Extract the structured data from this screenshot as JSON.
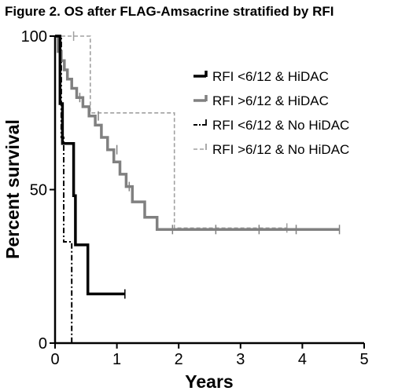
{
  "chart_data": {
    "type": "line",
    "subtype": "kaplan-meier",
    "title": "Figure 2. OS after FLAG-Amsacrine stratified by RFI",
    "xlabel": "Years",
    "ylabel": "Percent survival",
    "xlim": [
      0,
      5
    ],
    "ylim": [
      0,
      100
    ],
    "xticks": [
      "0",
      "1",
      "2",
      "3",
      "4",
      "5"
    ],
    "yticks": [
      "0",
      "50",
      "100"
    ],
    "grid": false,
    "legend_position": "top-right",
    "series": [
      {
        "name": "RFI <6/12 & HiDAC",
        "color": "#000000",
        "style": "solid-thick",
        "x": [
          0,
          0.08,
          0.08,
          0.12,
          0.12,
          0.16,
          0.16,
          0.3,
          0.3,
          0.33,
          0.33,
          0.53,
          0.53,
          1.13
        ],
        "y": [
          100,
          100,
          78,
          78,
          65,
          65,
          65,
          65,
          48,
          48,
          32,
          32,
          16,
          16
        ],
        "censored": [
          [
            1.13,
            16
          ]
        ]
      },
      {
        "name": "RFI >6/12 & HiDAC",
        "color": "#808080",
        "style": "solid-thick",
        "x": [
          0,
          0.05,
          0.05,
          0.1,
          0.1,
          0.15,
          0.15,
          0.2,
          0.2,
          0.27,
          0.27,
          0.35,
          0.35,
          0.45,
          0.45,
          0.55,
          0.55,
          0.65,
          0.65,
          0.75,
          0.75,
          0.85,
          0.85,
          0.95,
          0.95,
          1.05,
          1.05,
          1.15,
          1.15,
          1.25,
          1.25,
          1.45,
          1.45,
          1.65,
          1.65,
          4.6
        ],
        "y": [
          100,
          100,
          95,
          95,
          92,
          92,
          89,
          89,
          86,
          86,
          83,
          83,
          80,
          80,
          77,
          77,
          74,
          74,
          71,
          71,
          67,
          67,
          63,
          63,
          59,
          59,
          55,
          55,
          51,
          51,
          46,
          46,
          41,
          41,
          37,
          37
        ],
        "censored": [
          [
            0.4,
            80
          ],
          [
            0.7,
            74
          ],
          [
            1.0,
            63
          ],
          [
            1.2,
            51
          ],
          [
            1.9,
            37
          ],
          [
            2.6,
            37
          ],
          [
            3.3,
            37
          ],
          [
            3.9,
            37
          ],
          [
            4.6,
            37
          ]
        ]
      },
      {
        "name": "RFI <6/12 & No HiDAC",
        "color": "#000000",
        "style": "dash-dot",
        "x": [
          0,
          0.1,
          0.1,
          0.14,
          0.14,
          0.27,
          0.27
        ],
        "y": [
          100,
          100,
          67,
          67,
          33,
          33,
          0
        ],
        "censored": []
      },
      {
        "name": "RFI >6/12 & No HiDAC",
        "color": "#a0a0a0",
        "style": "dashed",
        "x": [
          0,
          0.57,
          0.57,
          1.93,
          1.93,
          3.75
        ],
        "y": [
          100,
          100,
          75,
          75,
          37.5,
          37.5
        ],
        "censored": [
          [
            0.3,
            100
          ],
          [
            3.75,
            37.5
          ]
        ]
      }
    ]
  }
}
